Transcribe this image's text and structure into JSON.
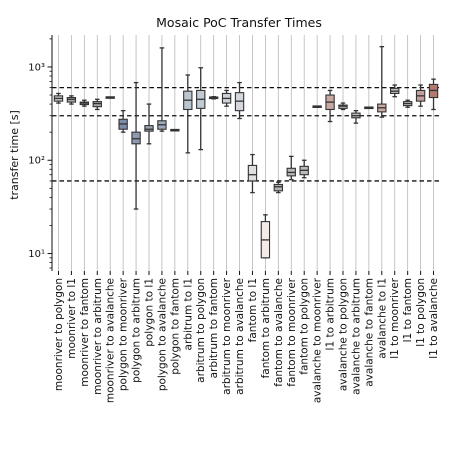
{
  "chart_data": {
    "type": "box",
    "title": "Mosaic PoC Transfer Times",
    "xlabel": "",
    "ylabel": "transfer time [s]",
    "yscale": "log",
    "ylim": [
      6.5,
      2200
    ],
    "yticks": [
      {
        "value": 10,
        "label": "10¹"
      },
      {
        "value": 100,
        "label": "10²"
      },
      {
        "value": 1000,
        "label": "10³"
      }
    ],
    "reference_lines": [
      600,
      300,
      60
    ],
    "vertical_grid": true,
    "boxes": [
      {
        "category": "moonriver to polygon",
        "whisker_low": 410,
        "q1": 430,
        "median": 460,
        "q3": 490,
        "whisker_high": 520,
        "color": "#ccc4c4"
      },
      {
        "category": "moonriver to l1",
        "whisker_low": 400,
        "q1": 420,
        "median": 450,
        "q3": 470,
        "whisker_high": 490,
        "color": "#aaaaaa"
      },
      {
        "category": "moonriver to fantom",
        "whisker_low": 380,
        "q1": 395,
        "median": 410,
        "q3": 420,
        "whisker_high": 440,
        "color": "#b0b0b0"
      },
      {
        "category": "moonriver to arbitrum",
        "whisker_low": 350,
        "q1": 375,
        "median": 405,
        "q3": 425,
        "whisker_high": 450,
        "color": "#a8a8a8"
      },
      {
        "category": "moonriver to avalanche",
        "whisker_low": 470,
        "q1": 470,
        "median": 470,
        "q3": 470,
        "whisker_high": 470,
        "color": "#bbbbbb"
      },
      {
        "category": "polygon to moonriver",
        "whisker_low": 200,
        "q1": 215,
        "median": 245,
        "q3": 275,
        "whisker_high": 340,
        "color": "#7d8ca6"
      },
      {
        "category": "polygon to arbitrum",
        "whisker_low": 30,
        "q1": 150,
        "median": 170,
        "q3": 200,
        "whisker_high": 680,
        "color": "#8e9ab0"
      },
      {
        "category": "polygon to l1",
        "whisker_low": 150,
        "q1": 205,
        "median": 215,
        "q3": 235,
        "whisker_high": 400,
        "color": "#9aa4b6"
      },
      {
        "category": "polygon to avalanche",
        "whisker_low": 205,
        "q1": 215,
        "median": 240,
        "q3": 265,
        "whisker_high": 1600,
        "color": "#9ea9bd"
      },
      {
        "category": "polygon to fantom",
        "whisker_low": 210,
        "q1": 210,
        "median": 210,
        "q3": 210,
        "whisker_high": 210,
        "color": "#b8c0cc"
      },
      {
        "category": "arbitrum to l1",
        "whisker_low": 120,
        "q1": 350,
        "median": 440,
        "q3": 550,
        "whisker_high": 820,
        "color": "#bcc6d0"
      },
      {
        "category": "arbitrum to polygon",
        "whisker_low": 130,
        "q1": 360,
        "median": 450,
        "q3": 560,
        "whisker_high": 980,
        "color": "#c2cad4"
      },
      {
        "category": "arbitrum to fantom",
        "whisker_low": 455,
        "q1": 460,
        "median": 465,
        "q3": 475,
        "whisker_high": 480,
        "color": "#c6ccd4"
      },
      {
        "category": "arbitrum to moonriver",
        "whisker_low": 380,
        "q1": 410,
        "median": 460,
        "q3": 520,
        "whisker_high": 560,
        "color": "#cdd2d8"
      },
      {
        "category": "arbitrum to avalanche",
        "whisker_low": 280,
        "q1": 340,
        "median": 430,
        "q3": 530,
        "whisker_high": 680,
        "color": "#d4d8dc"
      },
      {
        "category": "fantom to l1",
        "whisker_low": 45,
        "q1": 60,
        "median": 70,
        "q3": 88,
        "whisker_high": 115,
        "color": "#dedede"
      },
      {
        "category": "fantom to arbitrum",
        "whisker_low": 9,
        "q1": 9,
        "median": 14,
        "q3": 22,
        "whisker_high": 26,
        "color": "#f3ebe7"
      },
      {
        "category": "fantom to avalanche",
        "whisker_low": 45,
        "q1": 47,
        "median": 52,
        "q3": 55,
        "whisker_high": 58,
        "color": "#b4b4b4"
      },
      {
        "category": "fantom to moonriver",
        "whisker_low": 62,
        "q1": 68,
        "median": 74,
        "q3": 82,
        "whisker_high": 110,
        "color": "#b8b8b8"
      },
      {
        "category": "fantom to polygon",
        "whisker_low": 65,
        "q1": 70,
        "median": 78,
        "q3": 86,
        "whisker_high": 100,
        "color": "#bcbcbc"
      },
      {
        "category": "avalanche to moonriver",
        "whisker_low": 370,
        "q1": 372,
        "median": 375,
        "q3": 378,
        "whisker_high": 380,
        "color": "#bbbbbb"
      },
      {
        "category": "l1 to arbitrum",
        "whisker_low": 260,
        "q1": 350,
        "median": 420,
        "q3": 500,
        "whisker_high": 560,
        "color": "#c9a8a4"
      },
      {
        "category": "avalanche to polygon",
        "whisker_low": 350,
        "q1": 360,
        "median": 380,
        "q3": 390,
        "whisker_high": 410,
        "color": "#bdbdbd"
      },
      {
        "category": "avalanche to arbitrum",
        "whisker_low": 250,
        "q1": 285,
        "median": 300,
        "q3": 320,
        "whisker_high": 340,
        "color": "#c0c0c0"
      },
      {
        "category": "avalanche to fantom",
        "whisker_low": 360,
        "q1": 362,
        "median": 365,
        "q3": 368,
        "whisker_high": 370,
        "color": "#c4c4c4"
      },
      {
        "category": "avalanche to l1",
        "whisker_low": 290,
        "q1": 330,
        "median": 365,
        "q3": 400,
        "whisker_high": 1650,
        "color": "#c9aaa4"
      },
      {
        "category": "l1 to moonriver",
        "whisker_low": 480,
        "q1": 520,
        "median": 550,
        "q3": 590,
        "whisker_high": 640,
        "color": "#c2c2c2"
      },
      {
        "category": "l1 to fantom",
        "whisker_low": 370,
        "q1": 385,
        "median": 405,
        "q3": 425,
        "whisker_high": 440,
        "color": "#c4c4c4"
      },
      {
        "category": "l1 to polygon",
        "whisker_low": 380,
        "q1": 430,
        "median": 490,
        "q3": 560,
        "whisker_high": 640,
        "color": "#c4a09c"
      },
      {
        "category": "l1 to avalanche",
        "whisker_low": 350,
        "q1": 470,
        "median": 560,
        "q3": 650,
        "whisker_high": 740,
        "color": "#b27a70"
      }
    ]
  }
}
